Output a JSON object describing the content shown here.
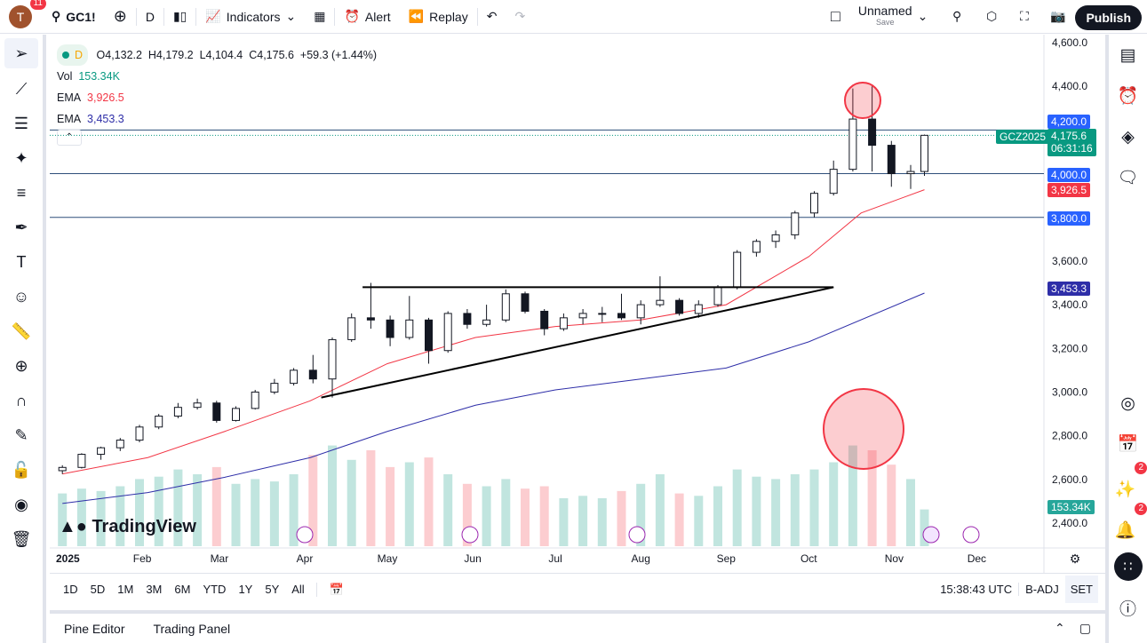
{
  "toolbar": {
    "avatar_letter": "T",
    "notifications": "11",
    "symbol": "GC1!",
    "interval": "D",
    "indicators": "Indicators",
    "alert": "Alert",
    "replay": "Replay",
    "layout_name": "Unnamed",
    "layout_save": "Save",
    "publish": "Publish"
  },
  "legend": {
    "interval": "D",
    "open": "O4,132.2",
    "high": "H4,179.2",
    "low": "L4,104.4",
    "close": "C4,175.6",
    "change": "+59.3 (+1.44%)",
    "vol_label": "Vol",
    "vol_value": "153.34K",
    "ema1_label": "EMA",
    "ema1_value": "3,926.5",
    "ema2_label": "EMA",
    "ema2_value": "3,453.3"
  },
  "price_labels": {
    "symbol_tag": "GCZ2025",
    "last": "4,175.6",
    "countdown": "06:31:16",
    "l4200": "4,200.0",
    "l4000": "4,000.0",
    "l3800": "3,800.0",
    "ema1": "3,926.5",
    "ema2": "3,453.3",
    "volume": "153.34K"
  },
  "colors": {
    "up": "#089981",
    "down": "#131722",
    "ema_fast": "#f23645",
    "ema_slow": "#2e2ea8",
    "level_line": "#2962ff",
    "highlight": "#f23645"
  },
  "logo": "TradingView",
  "timeaxis": {
    "labels": [
      "2025",
      "Feb",
      "Mar",
      "Apr",
      "May",
      "Jun",
      "Jul",
      "Aug",
      "Sep",
      "Oct",
      "Nov",
      "Dec"
    ],
    "clock": "15:38:43 UTC",
    "badj": "B-ADJ",
    "set": "SET"
  },
  "ranges": [
    "1D",
    "5D",
    "1M",
    "3M",
    "6M",
    "YTD",
    "1Y",
    "5Y",
    "All"
  ],
  "bottom_tabs": [
    "Pine Editor",
    "Trading Panel"
  ],
  "right_badges": {
    "ideas": "2",
    "alerts": "2"
  },
  "chart_data": {
    "type": "candlestick",
    "symbol": "GCZ2025",
    "ylim": [
      2400,
      4600
    ],
    "yticks": [
      2400,
      2600,
      2800,
      3000,
      3200,
      3400,
      3600,
      3800,
      4000,
      4200,
      4400,
      4600
    ],
    "horizontal_levels": [
      4200,
      4000,
      3800
    ],
    "triangle": {
      "resistance": 3480,
      "support_from": [
        "2025-04-07",
        2975
      ],
      "support_to": [
        "2025-10-10",
        3480
      ]
    },
    "candles_weekly": [
      [
        "2025-01-03",
        2640,
        2665,
        2625,
        2655,
        220
      ],
      [
        "2025-01-10",
        2655,
        2720,
        2650,
        2715,
        240
      ],
      [
        "2025-01-17",
        2715,
        2750,
        2690,
        2745,
        230
      ],
      [
        "2025-01-24",
        2745,
        2790,
        2730,
        2780,
        250
      ],
      [
        "2025-01-31",
        2780,
        2850,
        2770,
        2840,
        280
      ],
      [
        "2025-02-07",
        2840,
        2900,
        2830,
        2890,
        290
      ],
      [
        "2025-02-14",
        2890,
        2950,
        2880,
        2930,
        320
      ],
      [
        "2025-02-21",
        2930,
        2970,
        2920,
        2950,
        300
      ],
      [
        "2025-02-28",
        2950,
        2960,
        2860,
        2870,
        330
      ],
      [
        "2025-03-07",
        2870,
        2935,
        2865,
        2925,
        260
      ],
      [
        "2025-03-14",
        2925,
        3010,
        2920,
        3000,
        280
      ],
      [
        "2025-03-21",
        3000,
        3060,
        2990,
        3040,
        270
      ],
      [
        "2025-03-28",
        3040,
        3110,
        3030,
        3100,
        300
      ],
      [
        "2025-04-04",
        3100,
        3170,
        3040,
        3060,
        380
      ],
      [
        "2025-04-11",
        3060,
        3250,
        2975,
        3240,
        420
      ],
      [
        "2025-04-18",
        3240,
        3360,
        3230,
        3340,
        360
      ],
      [
        "2025-04-25",
        3340,
        3500,
        3290,
        3330,
        400
      ],
      [
        "2025-05-02",
        3330,
        3350,
        3210,
        3250,
        330
      ],
      [
        "2025-05-09",
        3250,
        3440,
        3240,
        3330,
        350
      ],
      [
        "2025-05-16",
        3330,
        3340,
        3130,
        3190,
        370
      ],
      [
        "2025-05-23",
        3190,
        3370,
        3180,
        3360,
        300
      ],
      [
        "2025-05-30",
        3360,
        3380,
        3290,
        3310,
        260
      ],
      [
        "2025-06-06",
        3310,
        3400,
        3300,
        3330,
        250
      ],
      [
        "2025-06-13",
        3330,
        3470,
        3320,
        3450,
        280
      ],
      [
        "2025-06-20",
        3450,
        3460,
        3360,
        3370,
        240
      ],
      [
        "2025-06-27",
        3370,
        3380,
        3260,
        3290,
        250
      ],
      [
        "2025-07-04",
        3290,
        3360,
        3280,
        3340,
        200
      ],
      [
        "2025-07-11",
        3340,
        3380,
        3310,
        3360,
        210
      ],
      [
        "2025-07-18",
        3360,
        3390,
        3320,
        3360,
        200
      ],
      [
        "2025-07-25",
        3360,
        3450,
        3330,
        3340,
        230
      ],
      [
        "2025-08-01",
        3340,
        3420,
        3310,
        3400,
        260
      ],
      [
        "2025-08-08",
        3400,
        3530,
        3390,
        3420,
        300
      ],
      [
        "2025-08-15",
        3420,
        3430,
        3350,
        3360,
        220
      ],
      [
        "2025-08-22",
        3360,
        3420,
        3340,
        3400,
        210
      ],
      [
        "2025-08-29",
        3400,
        3490,
        3390,
        3480,
        250
      ],
      [
        "2025-09-05",
        3480,
        3650,
        3470,
        3640,
        320
      ],
      [
        "2025-09-12",
        3640,
        3700,
        3620,
        3690,
        290
      ],
      [
        "2025-09-19",
        3690,
        3740,
        3660,
        3720,
        280
      ],
      [
        "2025-09-26",
        3720,
        3830,
        3700,
        3820,
        300
      ],
      [
        "2025-10-03",
        3820,
        3920,
        3800,
        3910,
        320
      ],
      [
        "2025-10-10",
        3910,
        4060,
        3900,
        4020,
        350
      ],
      [
        "2025-10-17",
        4020,
        4390,
        4010,
        4250,
        420
      ],
      [
        "2025-10-24",
        4250,
        4400,
        4010,
        4130,
        400
      ],
      [
        "2025-10-31",
        4130,
        4150,
        3940,
        4000,
        340
      ],
      [
        "2025-11-07",
        4000,
        4040,
        3930,
        4010,
        280
      ],
      [
        "2025-11-12",
        4010,
        4179,
        3990,
        4175.6,
        153.34
      ]
    ],
    "ema_fast": [
      [
        "2025-01-03",
        2625
      ],
      [
        "2025-02-03",
        2700
      ],
      [
        "2025-03-03",
        2820
      ],
      [
        "2025-04-03",
        2960
      ],
      [
        "2025-05-01",
        3130
      ],
      [
        "2025-06-02",
        3250
      ],
      [
        "2025-07-01",
        3300
      ],
      [
        "2025-08-01",
        3330
      ],
      [
        "2025-09-01",
        3400
      ],
      [
        "2025-10-01",
        3620
      ],
      [
        "2025-10-20",
        3820
      ],
      [
        "2025-11-12",
        3926.5
      ]
    ],
    "ema_slow": [
      [
        "2025-01-03",
        2490
      ],
      [
        "2025-02-03",
        2540
      ],
      [
        "2025-03-03",
        2610
      ],
      [
        "2025-04-03",
        2700
      ],
      [
        "2025-05-01",
        2820
      ],
      [
        "2025-06-02",
        2940
      ],
      [
        "2025-07-01",
        3010
      ],
      [
        "2025-08-01",
        3060
      ],
      [
        "2025-09-01",
        3110
      ],
      [
        "2025-10-01",
        3230
      ],
      [
        "2025-11-12",
        3453.3
      ]
    ]
  }
}
